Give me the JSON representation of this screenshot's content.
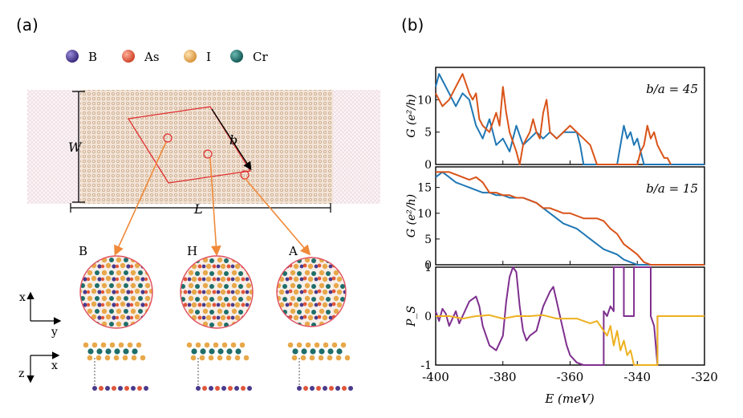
{
  "panel_a": {
    "label": "(a)",
    "legend": [
      {
        "name": "B",
        "color": "#4a3a8c"
      },
      {
        "name": "As",
        "color": "#e0563a"
      },
      {
        "name": "I",
        "color": "#e8a84a"
      },
      {
        "name": "Cr",
        "color": "#1e6e6a"
      }
    ],
    "dim_w": "W",
    "dim_l": "L",
    "dim_b": "b",
    "stackings": [
      "B",
      "H",
      "A"
    ],
    "axes_top": {
      "vertical": "x",
      "horizontal": "y"
    },
    "axes_bottom": {
      "vertical": "z",
      "horizontal": "x"
    }
  },
  "panel_b": {
    "label": "(b)",
    "xlabel": "E (meV)",
    "xticks": [
      "-400",
      "-380",
      "-360",
      "-340",
      "-320"
    ],
    "colors": {
      "blue": "#1f77b4",
      "orange": "#d95319",
      "purple": "#7e2f8e",
      "yellow": "#edb120"
    }
  },
  "chart_data": [
    {
      "type": "line",
      "title": "b/a = 45",
      "ylabel": "G (e²/h)",
      "xlim": [
        -400,
        -320
      ],
      "ylim": [
        0,
        15
      ],
      "yticks": [
        "0",
        "5",
        "10"
      ],
      "series": [
        {
          "name": "blue",
          "x": [
            -400,
            -399,
            -398,
            -396,
            -394,
            -392,
            -390,
            -389,
            -388,
            -386,
            -384,
            -382,
            -380,
            -378,
            -377,
            -376,
            -374,
            -372,
            -370,
            -368,
            -366,
            -364,
            -362,
            -360,
            -358,
            -357,
            -356,
            -354,
            -350,
            -346,
            -345,
            -344,
            -343,
            -342,
            -341,
            -340,
            -339,
            -338,
            -330,
            -320
          ],
          "y": [
            12,
            14,
            13,
            11,
            9,
            11,
            10,
            8,
            6,
            4,
            7,
            3,
            4,
            2,
            4,
            6,
            3,
            4,
            5,
            4,
            5,
            4,
            5,
            5,
            5,
            3,
            0,
            0,
            0,
            0,
            3,
            6,
            4,
            5,
            3,
            4,
            2,
            0,
            0,
            0
          ]
        },
        {
          "name": "orange",
          "x": [
            -400,
            -399,
            -398,
            -396,
            -394,
            -392,
            -390,
            -389,
            -388,
            -387,
            -386,
            -384,
            -382,
            -381,
            -380,
            -379,
            -378,
            -376,
            -375,
            -374,
            -373,
            -372,
            -371,
            -370,
            -369,
            -368,
            -367,
            -366,
            -364,
            -362,
            -360,
            -358,
            -356,
            -354,
            -352,
            -350,
            -349,
            -348,
            -346,
            -342,
            -340,
            -339,
            -338,
            -337,
            -336,
            -335,
            -334,
            -333,
            -332,
            -331,
            -330
          ],
          "y": [
            11,
            10,
            9,
            10,
            12,
            14,
            11,
            10,
            11,
            7,
            6,
            5,
            8,
            6,
            12,
            8,
            5,
            2,
            0,
            3,
            4,
            5,
            7,
            5,
            4,
            8,
            10,
            5,
            4,
            5,
            6,
            5,
            4,
            3,
            0,
            0,
            0,
            0,
            0,
            0,
            0,
            2,
            3,
            6,
            4,
            5,
            3,
            2,
            1,
            1,
            0
          ]
        }
      ]
    },
    {
      "type": "line",
      "title": "b/a = 15",
      "ylabel": "G (e²/h)",
      "xlim": [
        -400,
        -320
      ],
      "ylim": [
        0,
        19
      ],
      "yticks": [
        "0",
        "5",
        "10",
        "15"
      ],
      "series": [
        {
          "name": "blue",
          "x": [
            -400,
            -398,
            -396,
            -394,
            -392,
            -390,
            -388,
            -386,
            -384,
            -382,
            -380,
            -378,
            -376,
            -374,
            -372,
            -370,
            -368,
            -366,
            -364,
            -362,
            -360,
            -358,
            -356,
            -354,
            -352,
            -350,
            -348,
            -346,
            -344,
            -342,
            -340,
            -338,
            -336,
            -320
          ],
          "y": [
            17,
            18,
            17,
            16,
            15.5,
            15,
            14.5,
            14,
            14,
            13.5,
            13.5,
            13,
            13,
            13,
            12.5,
            12,
            11,
            10,
            9,
            8,
            7.5,
            7,
            6,
            5,
            4,
            3,
            2.5,
            2,
            1,
            0.5,
            0,
            0,
            0,
            0
          ]
        },
        {
          "name": "orange",
          "x": [
            -400,
            -398,
            -396,
            -394,
            -392,
            -390,
            -388,
            -386,
            -384,
            -382,
            -380,
            -378,
            -376,
            -374,
            -372,
            -370,
            -368,
            -366,
            -364,
            -362,
            -360,
            -358,
            -356,
            -354,
            -352,
            -350,
            -348,
            -346,
            -344,
            -342,
            -340,
            -338,
            -336,
            -320
          ],
          "y": [
            18,
            18,
            18,
            17.5,
            17,
            16.5,
            17,
            16,
            14,
            14,
            13.5,
            13.5,
            13,
            13,
            12.5,
            12,
            11,
            11,
            10.5,
            10,
            10,
            9.5,
            9,
            9,
            9,
            8.5,
            7,
            6,
            4,
            3,
            2,
            0.5,
            0,
            0
          ]
        }
      ]
    },
    {
      "type": "line",
      "title": "",
      "ylabel": "P_S",
      "xlim": [
        -400,
        -320
      ],
      "ylim": [
        -1,
        1
      ],
      "yticks": [
        "-1",
        "0",
        "1"
      ],
      "series": [
        {
          "name": "purple",
          "x": [
            -400,
            -399,
            -398,
            -397,
            -396,
            -395,
            -394,
            -393,
            -392,
            -390,
            -388,
            -387,
            -386,
            -384,
            -382,
            -380,
            -379,
            -378,
            -377,
            -376,
            -375,
            -374,
            -373,
            -372,
            -370,
            -368,
            -366,
            -365,
            -364,
            -363,
            -362,
            -361,
            -360,
            -358,
            -356,
            -355,
            -355,
            -350,
            -350,
            -349,
            -348,
            -347,
            -347,
            -344,
            -344,
            -341,
            -341,
            -336,
            -336,
            -335,
            -334,
            -334,
            -320
          ],
          "y": [
            0.1,
            -0.1,
            0.15,
            0.05,
            -0.2,
            -0.05,
            0.1,
            -0.15,
            0,
            0.3,
            0.4,
            0.2,
            -0.2,
            -0.6,
            -0.7,
            -0.4,
            0.3,
            0.8,
            1,
            0.9,
            0.2,
            -0.3,
            -0.5,
            -0.4,
            -0.3,
            0.2,
            0.5,
            0.6,
            0.3,
            0,
            -0.3,
            -0.6,
            -0.8,
            -0.95,
            -1,
            -1,
            -1,
            -1,
            0.1,
            0,
            0.2,
            0.1,
            1,
            1,
            0,
            0,
            1,
            1,
            0,
            -0.2,
            -1,
            0,
            0
          ]
        },
        {
          "name": "yellow",
          "x": [
            -400,
            -396,
            -392,
            -388,
            -384,
            -380,
            -376,
            -372,
            -368,
            -364,
            -360,
            -358,
            -356,
            -354,
            -352,
            -350,
            -349,
            -348,
            -347,
            -346,
            -345,
            -344,
            -343,
            -342,
            -341,
            -340,
            -339,
            -336,
            -335,
            -334,
            -334,
            -320
          ],
          "y": [
            0,
            0,
            -0.05,
            0,
            0.02,
            -0.05,
            0,
            0,
            0.02,
            -0.05,
            -0.05,
            -0.05,
            -0.1,
            -0.15,
            -0.1,
            -0.3,
            -0.4,
            -0.2,
            -0.6,
            -0.3,
            -0.7,
            -0.5,
            -0.8,
            -0.7,
            -1,
            -1,
            -1,
            -1,
            -1,
            -1,
            0,
            0
          ]
        }
      ]
    }
  ]
}
